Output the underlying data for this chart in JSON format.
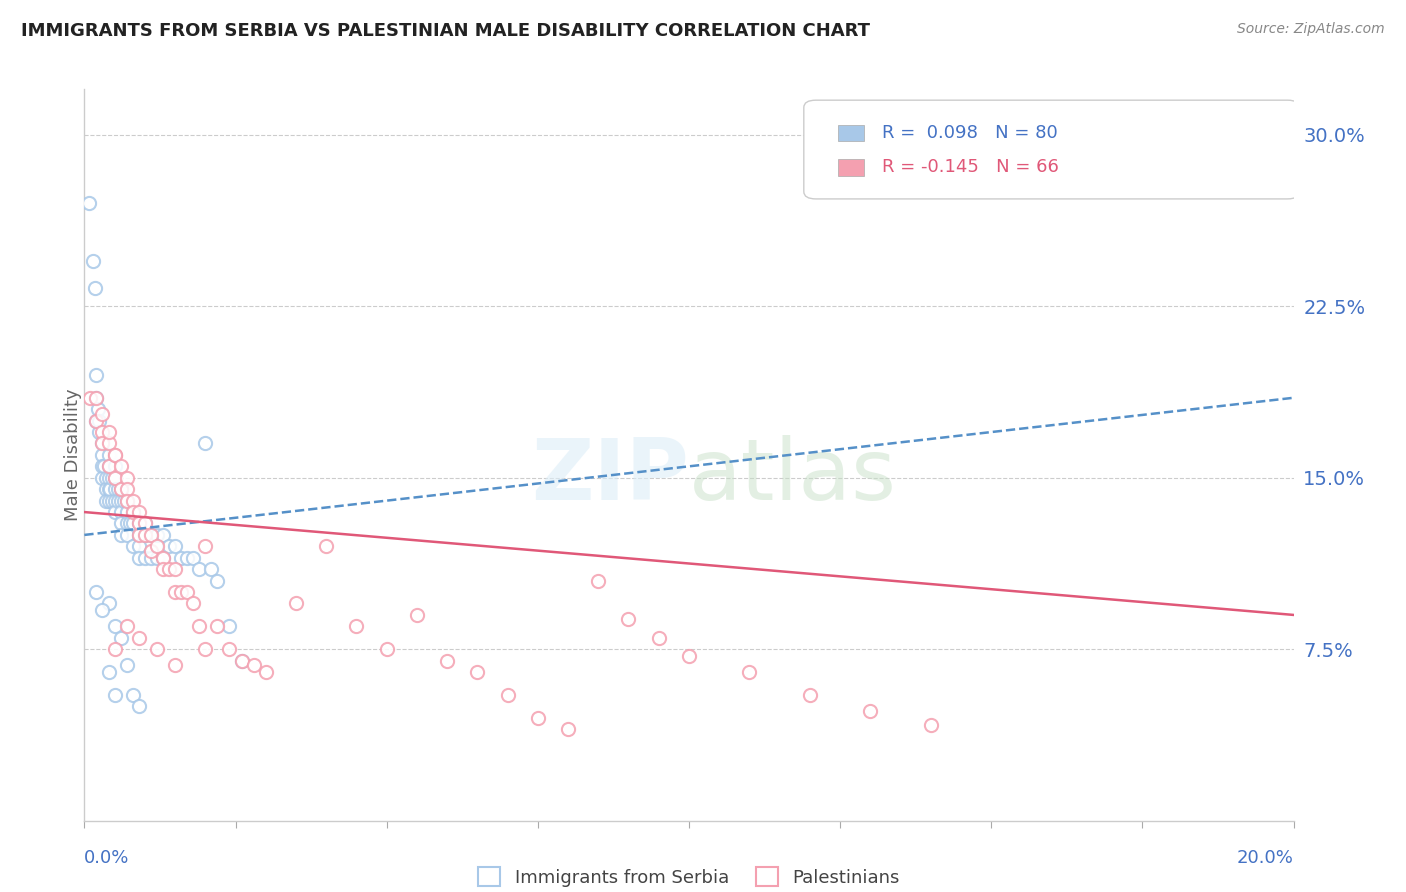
{
  "title": "IMMIGRANTS FROM SERBIA VS PALESTINIAN MALE DISABILITY CORRELATION CHART",
  "source": "Source: ZipAtlas.com",
  "ylabel": "Male Disability",
  "right_ytick_vals": [
    0.075,
    0.15,
    0.225,
    0.3
  ],
  "right_ytick_labels": [
    "7.5%",
    "15.0%",
    "22.5%",
    "30.0%"
  ],
  "serbia_color": "#a8c8e8",
  "palestinian_color": "#f4a0b0",
  "serbia_line_color": "#5590c8",
  "palestinian_line_color": "#e05878",
  "serbia_R": 0.098,
  "serbian_N": 80,
  "palestinian_R": -0.145,
  "palestinian_N": 66,
  "xlim": [
    0.0,
    0.2
  ],
  "ylim": [
    0.0,
    0.32
  ],
  "serbia_points_x": [
    0.0008,
    0.0015,
    0.0018,
    0.002,
    0.002,
    0.002,
    0.0022,
    0.0025,
    0.0025,
    0.003,
    0.003,
    0.003,
    0.003,
    0.0032,
    0.0035,
    0.0035,
    0.0035,
    0.004,
    0.004,
    0.004,
    0.004,
    0.004,
    0.0042,
    0.0045,
    0.0045,
    0.005,
    0.005,
    0.005,
    0.005,
    0.005,
    0.0055,
    0.0055,
    0.006,
    0.006,
    0.006,
    0.006,
    0.006,
    0.0065,
    0.007,
    0.007,
    0.007,
    0.007,
    0.0075,
    0.008,
    0.008,
    0.008,
    0.009,
    0.009,
    0.009,
    0.009,
    0.01,
    0.01,
    0.01,
    0.011,
    0.011,
    0.012,
    0.012,
    0.013,
    0.013,
    0.014,
    0.015,
    0.016,
    0.017,
    0.018,
    0.019,
    0.02,
    0.021,
    0.022,
    0.024,
    0.026,
    0.004,
    0.005,
    0.006,
    0.007,
    0.008,
    0.009,
    0.002,
    0.003,
    0.004,
    0.005
  ],
  "serbia_points_y": [
    0.27,
    0.245,
    0.233,
    0.195,
    0.185,
    0.175,
    0.18,
    0.175,
    0.17,
    0.165,
    0.16,
    0.155,
    0.15,
    0.155,
    0.15,
    0.145,
    0.14,
    0.16,
    0.155,
    0.15,
    0.145,
    0.14,
    0.145,
    0.15,
    0.14,
    0.155,
    0.15,
    0.145,
    0.14,
    0.135,
    0.145,
    0.14,
    0.145,
    0.14,
    0.135,
    0.13,
    0.125,
    0.14,
    0.14,
    0.135,
    0.13,
    0.125,
    0.13,
    0.135,
    0.13,
    0.12,
    0.13,
    0.125,
    0.12,
    0.115,
    0.13,
    0.125,
    0.115,
    0.125,
    0.115,
    0.125,
    0.115,
    0.125,
    0.115,
    0.12,
    0.12,
    0.115,
    0.115,
    0.115,
    0.11,
    0.165,
    0.11,
    0.105,
    0.085,
    0.07,
    0.095,
    0.085,
    0.08,
    0.068,
    0.055,
    0.05,
    0.1,
    0.092,
    0.065,
    0.055
  ],
  "palestinian_points_x": [
    0.001,
    0.002,
    0.002,
    0.003,
    0.003,
    0.003,
    0.004,
    0.004,
    0.004,
    0.005,
    0.005,
    0.005,
    0.006,
    0.006,
    0.007,
    0.007,
    0.007,
    0.008,
    0.008,
    0.009,
    0.009,
    0.009,
    0.01,
    0.01,
    0.011,
    0.011,
    0.012,
    0.013,
    0.013,
    0.014,
    0.015,
    0.015,
    0.016,
    0.017,
    0.018,
    0.019,
    0.02,
    0.022,
    0.024,
    0.026,
    0.028,
    0.03,
    0.035,
    0.04,
    0.045,
    0.05,
    0.055,
    0.06,
    0.065,
    0.07,
    0.075,
    0.08,
    0.085,
    0.09,
    0.095,
    0.1,
    0.11,
    0.12,
    0.13,
    0.14,
    0.005,
    0.007,
    0.009,
    0.012,
    0.015,
    0.02
  ],
  "palestinian_points_y": [
    0.185,
    0.175,
    0.185,
    0.17,
    0.165,
    0.178,
    0.165,
    0.155,
    0.17,
    0.16,
    0.15,
    0.16,
    0.155,
    0.145,
    0.15,
    0.145,
    0.14,
    0.14,
    0.135,
    0.135,
    0.13,
    0.125,
    0.13,
    0.125,
    0.125,
    0.118,
    0.12,
    0.115,
    0.11,
    0.11,
    0.11,
    0.1,
    0.1,
    0.1,
    0.095,
    0.085,
    0.12,
    0.085,
    0.075,
    0.07,
    0.068,
    0.065,
    0.095,
    0.12,
    0.085,
    0.075,
    0.09,
    0.07,
    0.065,
    0.055,
    0.045,
    0.04,
    0.105,
    0.088,
    0.08,
    0.072,
    0.065,
    0.055,
    0.048,
    0.042,
    0.075,
    0.085,
    0.08,
    0.075,
    0.068,
    0.075
  ]
}
